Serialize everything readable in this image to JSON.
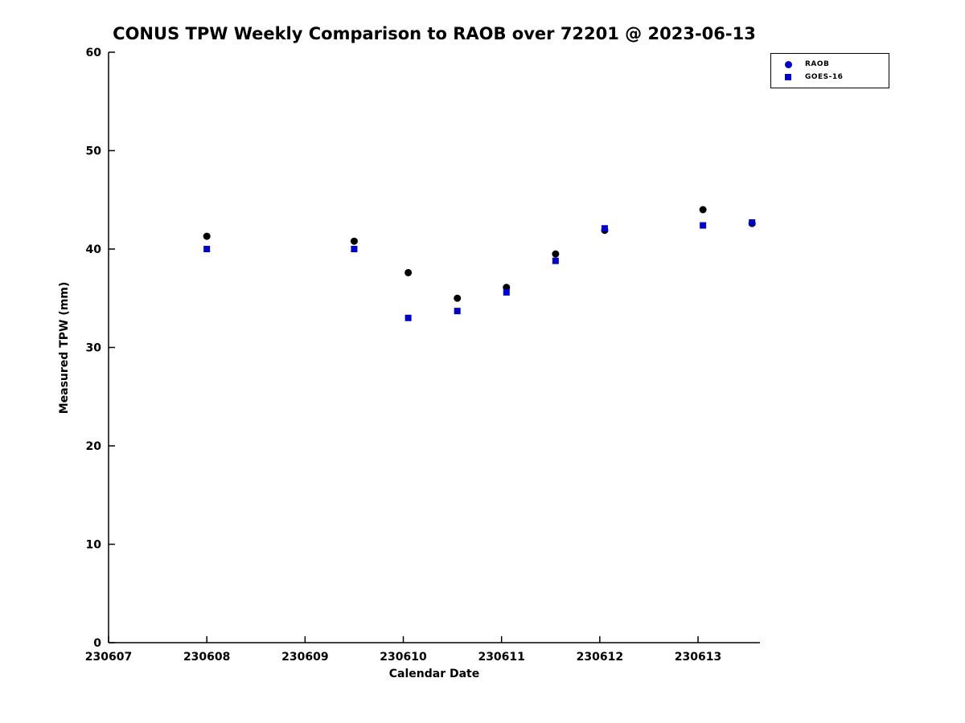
{
  "chart_data": {
    "type": "scatter",
    "title": "CONUS TPW Weekly Comparison to RAOB over 72201 @ 2023-06-13",
    "xlabel": "Calendar Date",
    "ylabel": "Measured TPW (mm)",
    "xlim": [
      230607,
      230613.63
    ],
    "ylim": [
      0,
      60
    ],
    "xticks": [
      230607,
      230608,
      230609,
      230610,
      230611,
      230612,
      230613
    ],
    "yticks": [
      0,
      10,
      20,
      30,
      40,
      50,
      60
    ],
    "grid": false,
    "legend": {
      "position": "top-right-outside",
      "entries": [
        {
          "label": "RAOB",
          "marker": "circle",
          "color": "#0000cc"
        },
        {
          "label": "GOES-16",
          "marker": "square",
          "color": "#0000cc"
        }
      ]
    },
    "series": [
      {
        "name": "RAOB",
        "marker": "circle",
        "color": "#000000",
        "x": [
          230608,
          230609.5,
          230610.05,
          230610.55,
          230611.05,
          230611.55,
          230612.05,
          230613.05,
          230613.55
        ],
        "y": [
          41.3,
          40.8,
          37.6,
          35.0,
          36.1,
          39.5,
          41.9,
          44.0,
          42.6
        ]
      },
      {
        "name": "GOES-16",
        "marker": "square",
        "color": "#0000cc",
        "x": [
          230608,
          230609.5,
          230610.05,
          230610.55,
          230611.05,
          230611.55,
          230612.05,
          230613.05,
          230613.55
        ],
        "y": [
          40.0,
          40.0,
          33.0,
          33.7,
          35.6,
          38.8,
          42.1,
          42.4,
          42.7
        ]
      }
    ]
  }
}
